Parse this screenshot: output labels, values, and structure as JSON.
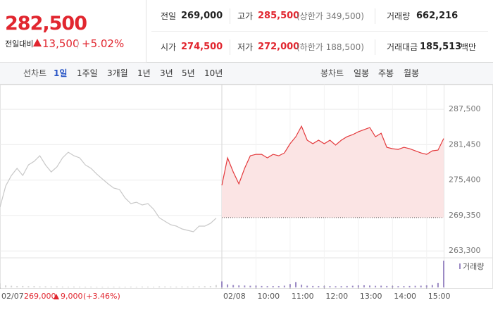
{
  "quote": {
    "price": "282,500",
    "change_label": "전일대비",
    "change": "13,500",
    "rate": "+5.02%",
    "prev": {
      "label": "전일",
      "value": "269,000"
    },
    "high": {
      "label": "고가",
      "value": "285,500",
      "note": "(상한가 349,500)"
    },
    "volume": {
      "label": "거래량",
      "value": "662,216"
    },
    "open": {
      "label": "시가",
      "value": "274,500"
    },
    "low": {
      "label": "저가",
      "value": "272,000",
      "note": "(하한가 188,500)"
    },
    "amount": {
      "label": "거래대금",
      "value": "185,513",
      "unit": "백만"
    }
  },
  "tabs": {
    "line_label": "선차트",
    "line": [
      "1일",
      "1주일",
      "3개월",
      "1년",
      "3년",
      "5년",
      "10년"
    ],
    "candle_label": "봉차트",
    "candle": [
      "일봉",
      "주봉",
      "월봉"
    ]
  },
  "chart_data": {
    "type": "line",
    "grid": true,
    "xlim": [
      0,
      780
    ],
    "ylim": [
      262000,
      291000
    ],
    "xticks": [
      {
        "value": 0,
        "label": "02/07"
      },
      {
        "value": 390,
        "label": "02/08"
      },
      {
        "value": 450,
        "label": "10:00"
      },
      {
        "value": 510,
        "label": "11:00"
      },
      {
        "value": 570,
        "label": "12:00"
      },
      {
        "value": 630,
        "label": "13:00"
      },
      {
        "value": 690,
        "label": "14:00"
      },
      {
        "value": 750,
        "label": "15:00"
      }
    ],
    "yticks": [
      {
        "value": 287500,
        "label": "287,500"
      },
      {
        "value": 281450,
        "label": "281,450"
      },
      {
        "value": 275400,
        "label": "275,400"
      },
      {
        "value": 269350,
        "label": "269,350"
      },
      {
        "value": 263300,
        "label": "263,300"
      }
    ],
    "baseline": 269000,
    "annotation": {
      "value": "269,000",
      "change": "9,000",
      "rate": "(+3.46%)"
    },
    "series": [
      {
        "color": "#c8c8c8",
        "fill": false,
        "x": [
          0,
          10,
          20,
          30,
          40,
          50,
          60,
          70,
          80,
          90,
          100,
          110,
          120,
          130,
          140,
          150,
          160,
          170,
          180,
          190,
          200,
          210,
          220,
          230,
          240,
          250,
          260,
          270,
          280,
          290,
          300,
          310,
          320,
          330,
          340,
          350,
          360,
          370,
          380
        ],
        "values": [
          270780,
          274390,
          276190,
          277400,
          276190,
          277990,
          278600,
          279560,
          277990,
          276790,
          277640,
          279200,
          280160,
          279560,
          279200,
          277990,
          277400,
          276430,
          275590,
          274750,
          274030,
          273790,
          272340,
          271380,
          271620,
          271140,
          271380,
          270420,
          268970,
          268370,
          267770,
          267530,
          267050,
          266810,
          266570,
          267530,
          267530,
          268010,
          268900
        ]
      },
      {
        "color": "#e4393c",
        "fill": true,
        "x": [
          390,
          400,
          410,
          420,
          430,
          440,
          450,
          460,
          470,
          480,
          490,
          500,
          510,
          520,
          530,
          540,
          550,
          560,
          570,
          580,
          590,
          600,
          610,
          620,
          630,
          640,
          650,
          660,
          670,
          680,
          690,
          700,
          710,
          720,
          730,
          740,
          750,
          760,
          770,
          780
        ],
        "values": [
          274500,
          279200,
          276790,
          274750,
          277400,
          279560,
          279800,
          279800,
          279200,
          279800,
          279560,
          280040,
          281610,
          282810,
          284610,
          282210,
          281610,
          282210,
          281610,
          282210,
          281370,
          282210,
          282810,
          283170,
          283650,
          284010,
          284370,
          282810,
          283410,
          281000,
          280760,
          280640,
          281000,
          280760,
          280400,
          280040,
          279800,
          280400,
          280520,
          282500
        ]
      }
    ],
    "volume": {
      "name": "거래량",
      "ylim": [
        0,
        40000
      ],
      "series": [
        {
          "color": "#d4d4d4",
          "x": [
            0,
            10,
            20,
            30,
            40,
            50,
            60,
            70,
            80,
            90,
            100,
            110,
            120,
            130,
            140,
            150,
            160,
            170,
            180,
            190,
            200,
            210,
            220,
            230,
            240,
            250,
            260,
            270,
            280,
            290,
            300,
            310,
            320,
            330,
            340,
            350,
            360,
            370,
            380
          ],
          "values": [
            6000,
            3000,
            2500,
            2000,
            2200,
            1800,
            2000,
            1500,
            1600,
            1400,
            1500,
            1300,
            1200,
            1300,
            1200,
            1100,
            1200,
            1000,
            1100,
            1000,
            1200,
            1100,
            1000,
            1200,
            1100,
            1300,
            1200,
            1100,
            1500,
            1400,
            1300,
            1200,
            1400,
            1300,
            1500,
            1600,
            1800,
            2000,
            3500
          ]
        },
        {
          "color": "#9b8ac4",
          "x": [
            390,
            400,
            410,
            420,
            430,
            440,
            450,
            460,
            470,
            480,
            490,
            500,
            510,
            520,
            530,
            540,
            550,
            560,
            570,
            580,
            590,
            600,
            610,
            620,
            630,
            640,
            650,
            660,
            670,
            680,
            690,
            700,
            710,
            720,
            730,
            740,
            750,
            760,
            770,
            780
          ],
          "values": [
            9000,
            4500,
            3500,
            3000,
            2800,
            2500,
            2600,
            2200,
            2000,
            2100,
            2000,
            2600,
            5000,
            8000,
            4000,
            2500,
            2200,
            2000,
            1800,
            2000,
            1800,
            1900,
            2200,
            2500,
            3000,
            3200,
            2800,
            2400,
            2600,
            2200,
            2000,
            1900,
            2000,
            2200,
            2400,
            2600,
            3000,
            3500,
            6500,
            40000
          ]
        }
      ]
    }
  }
}
